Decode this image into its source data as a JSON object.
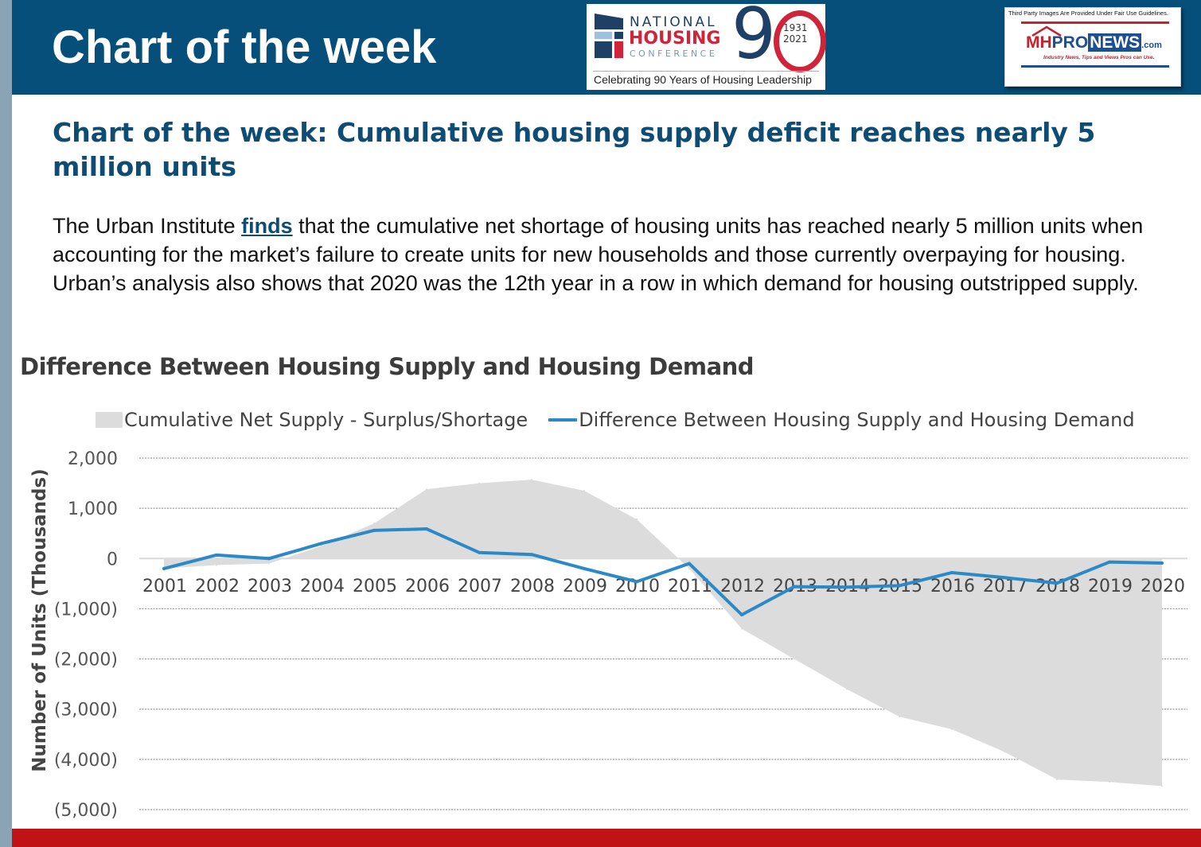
{
  "header": {
    "title": "Chart of the week",
    "nhc_logo": {
      "line1": "NATIONAL",
      "line2": "HOUSING",
      "line3": "CONFERENCE",
      "big_number": "9",
      "years_top": "1931",
      "years_bottom": "2021",
      "tagline": "Celebrating 90 Years of Housing Leadership"
    },
    "mh_logo": {
      "fair_use": "Third Party Images Are Provided Under Fair Use Guidelines.",
      "brand_mh": "MH",
      "brand_pro": "PRO",
      "brand_news": "NEWS",
      "brand_com": ".com",
      "tagline": "Industry News, Tips and Views Pros can Use."
    }
  },
  "article": {
    "headline": "Chart of the week: Cumulative housing supply deficit reaches nearly 5 million units",
    "body_before_link": "The Urban Institute ",
    "link_text": "finds",
    "body_after_link": " that the cumulative net shortage of housing units has reached nearly 5 million units when accounting for the market’s failure to create units for new households and those currently overpaying for housing. Urban’s analysis also shows that 2020 was the 12th year in a row in which demand for housing outstripped supply."
  },
  "colors": {
    "header_bg": "#054f7a",
    "headline": "#0f4c74",
    "area_fill": "#dcdcdc",
    "line": "#2a89c6",
    "footer_bar": "#c01315"
  },
  "chart_data": {
    "type": "area+line",
    "title": "Difference Between Housing Supply and Housing Demand",
    "xlabel": "",
    "ylabel": "Number of Units (Thousands)",
    "ylim": [
      -5000,
      2000
    ],
    "yticks": [
      2000,
      1000,
      0,
      -1000,
      -2000,
      -3000,
      -4000,
      -5000
    ],
    "ytick_labels": [
      "2,000",
      "1,000",
      "0",
      "(1,000)",
      "(2,000)",
      "(3,000)",
      "(4,000)",
      "(5,000)"
    ],
    "grid": true,
    "legend_position": "top",
    "categories": [
      "2001",
      "2002",
      "2003",
      "2004",
      "2005",
      "2006",
      "2007",
      "2008",
      "2009",
      "2010",
      "2011",
      "2012",
      "2013",
      "2014",
      "2015",
      "2016",
      "2017",
      "2018",
      "2019",
      "2020"
    ],
    "series": [
      {
        "name": "Cumulative Net Supply - Surplus/Shortage",
        "kind": "area",
        "values": [
          -200,
          -130,
          -100,
          250,
          700,
          1380,
          1500,
          1570,
          1350,
          780,
          -200,
          -1400,
          -2000,
          -2600,
          -3150,
          -3400,
          -3850,
          -4400,
          -4450,
          -4530
        ]
      },
      {
        "name": "Difference Between Housing Supply and Housing Demand",
        "kind": "line",
        "values": [
          -200,
          70,
          0,
          300,
          560,
          590,
          120,
          80,
          -200,
          -460,
          -100,
          -1120,
          -560,
          -570,
          -540,
          -280,
          -380,
          -490,
          -70,
          -90
        ]
      }
    ]
  }
}
